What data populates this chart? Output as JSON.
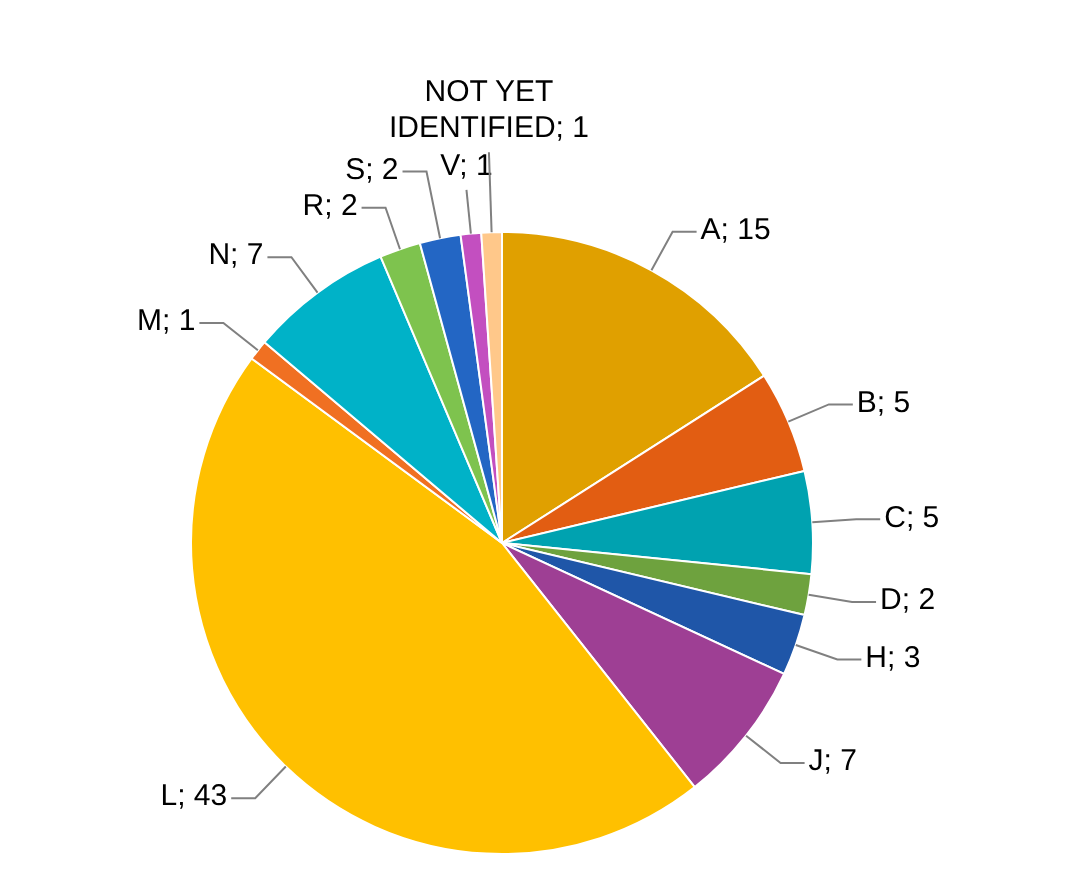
{
  "chart_data": {
    "type": "pie",
    "categories": [
      "A; 15",
      "B; 5",
      "C; 5",
      "D; 2",
      "H; 3",
      "J; 7",
      "L; 43",
      "M; 1",
      "N; 7",
      "R; 2",
      "S; 2",
      "V; 1",
      "NOT YET IDENTIFIED; 1"
    ],
    "values": [
      15,
      5,
      5,
      2,
      3,
      7,
      43,
      1,
      7,
      2,
      2,
      1,
      1
    ],
    "colors": [
      "#e0a000",
      "#e25d12",
      "#00a2b0",
      "#6ea23e",
      "#1f56a8",
      "#9e3f94",
      "#ffc000",
      "#f07022",
      "#00b2c8",
      "#7ec34e",
      "#2366c4",
      "#c34fc0",
      "#ffc88a"
    ],
    "legend": false
  }
}
